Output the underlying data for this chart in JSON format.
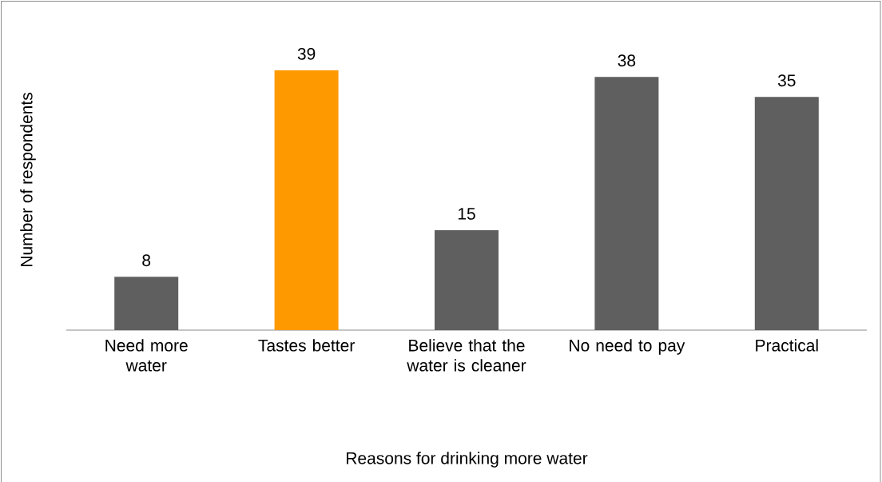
{
  "chart_data": {
    "type": "bar",
    "xlabel": "Reasons for drinking more water",
    "ylabel": "Number of respondents",
    "categories": [
      "Need more water",
      "Tastes better",
      "Believe that the water is cleaner",
      "No need to pay",
      "Practical"
    ],
    "values": [
      8,
      39,
      15,
      38,
      35
    ],
    "colors": [
      "#5f5f5f",
      "#ff9900",
      "#5f5f5f",
      "#5f5f5f",
      "#5f5f5f"
    ],
    "data_labels": true
  }
}
